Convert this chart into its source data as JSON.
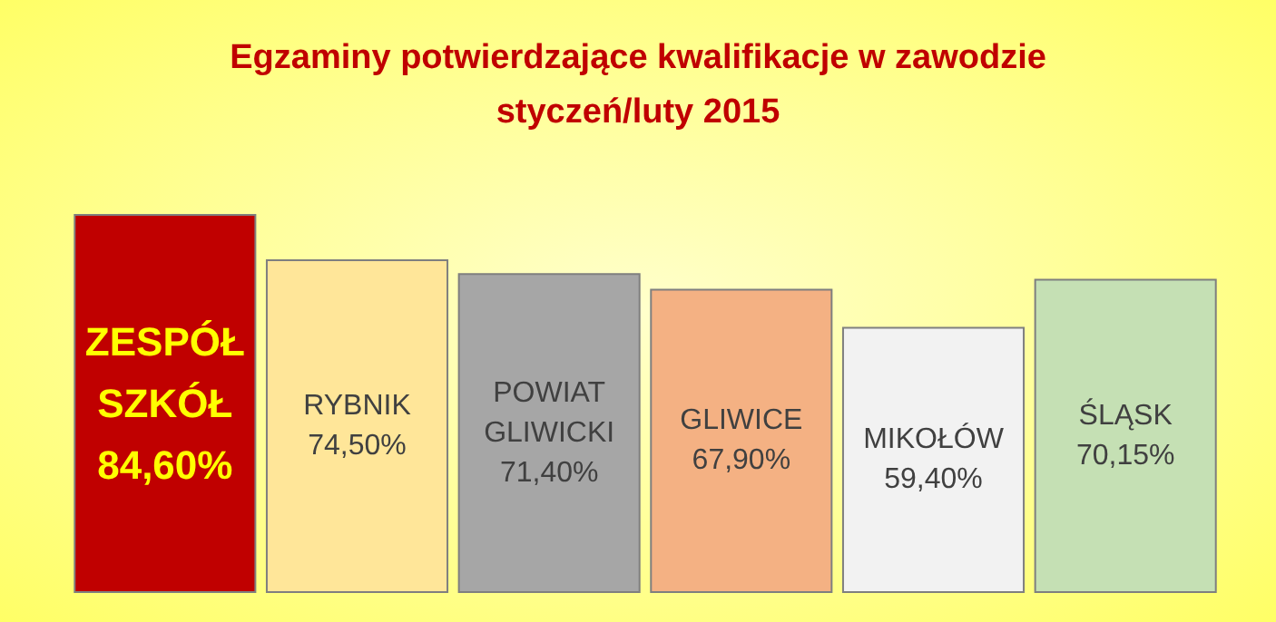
{
  "chart_data": {
    "type": "bar",
    "title": "Egzaminy potwierdzające kwalifikacje w zawodzie\nstyczeń/luty 2015",
    "categories": [
      "ZESPÓŁ SZKÓŁ",
      "RYBNIK",
      "POWIAT GLIWICKI",
      "GLIWICE",
      "MIKOŁÓW",
      "ŚLĄSK"
    ],
    "values": [
      84.6,
      74.5,
      71.4,
      67.9,
      59.4,
      70.15
    ],
    "value_labels": [
      "84,60%",
      "74,50%",
      "71,40%",
      "67,90%",
      "59,40%",
      "70,15%"
    ],
    "colors": [
      "#c00000",
      "#ffe699",
      "#a6a6a6",
      "#f4b183",
      "#f2f2f2",
      "#c5e0b4"
    ]
  }
}
